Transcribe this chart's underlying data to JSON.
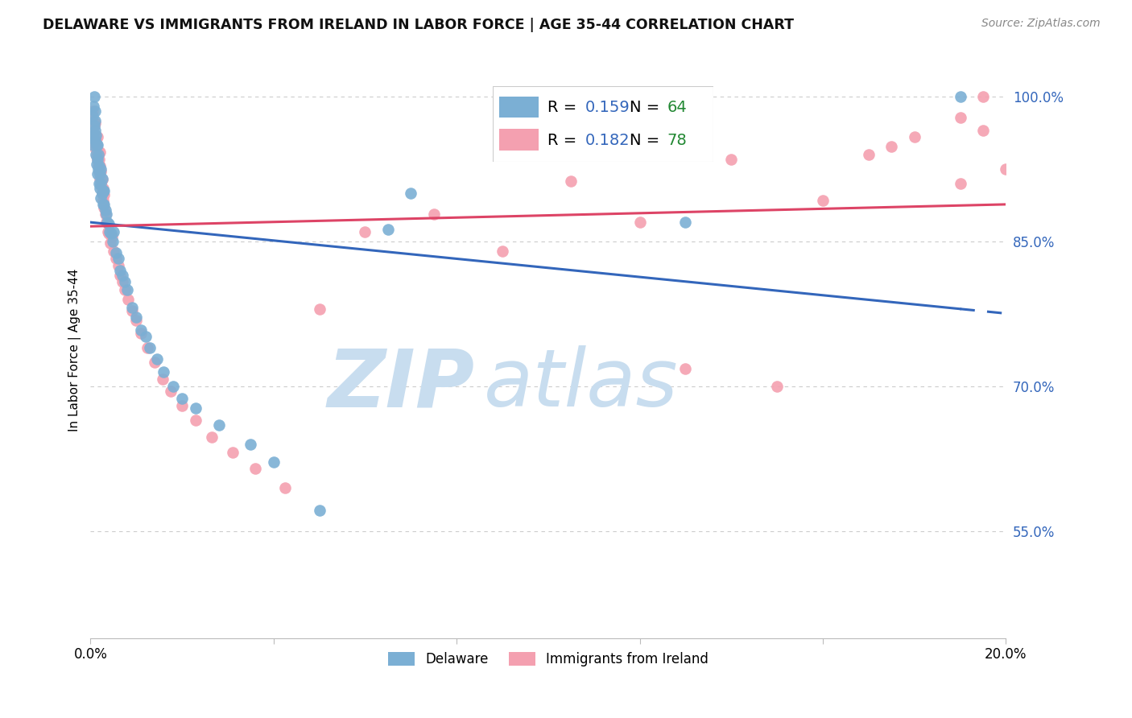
{
  "title": "DELAWARE VS IMMIGRANTS FROM IRELAND IN LABOR FORCE | AGE 35-44 CORRELATION CHART",
  "source": "Source: ZipAtlas.com",
  "ylabel": "In Labor Force | Age 35-44",
  "xlim": [
    0.0,
    0.2
  ],
  "ylim": [
    0.44,
    1.035
  ],
  "xtick_vals": [
    0.0,
    0.04,
    0.08,
    0.12,
    0.16,
    0.2
  ],
  "xtick_labels": [
    "0.0%",
    "",
    "",
    "",
    "",
    "20.0%"
  ],
  "ytick_vals_right": [
    1.0,
    0.85,
    0.7,
    0.55
  ],
  "ytick_labels_right": [
    "100.0%",
    "85.0%",
    "70.0%",
    "55.0%"
  ],
  "delaware_color": "#7BAFD4",
  "ireland_color": "#F4A0B0",
  "delaware_R": 0.159,
  "delaware_N": 64,
  "ireland_R": 0.182,
  "ireland_N": 78,
  "delaware_line_color": "#3366BB",
  "ireland_line_color": "#DD4466",
  "legend_R_color": "#3366BB",
  "legend_N_color": "#228833",
  "watermark_zip": "ZIP",
  "watermark_atlas": "atlas",
  "watermark_color_zip": "#C8DDEF",
  "watermark_color_atlas": "#C8DDEF",
  "delaware_x": [
    0.0005,
    0.0005,
    0.0007,
    0.0007,
    0.0008,
    0.0008,
    0.001,
    0.001,
    0.001,
    0.001,
    0.0012,
    0.0012,
    0.0013,
    0.0013,
    0.0015,
    0.0015,
    0.0015,
    0.0017,
    0.0017,
    0.0018,
    0.0018,
    0.002,
    0.002,
    0.0022,
    0.0022,
    0.0022,
    0.0025,
    0.0025,
    0.0027,
    0.0028,
    0.003,
    0.003,
    0.0033,
    0.0035,
    0.0037,
    0.004,
    0.0042,
    0.0045,
    0.0048,
    0.005,
    0.0055,
    0.006,
    0.0065,
    0.007,
    0.0075,
    0.008,
    0.009,
    0.01,
    0.011,
    0.012,
    0.013,
    0.0145,
    0.016,
    0.018,
    0.02,
    0.023,
    0.028,
    0.035,
    0.04,
    0.05,
    0.065,
    0.07,
    0.13,
    0.19
  ],
  "delaware_y": [
    0.95,
    0.98,
    0.96,
    0.99,
    0.97,
    1.0,
    0.955,
    0.965,
    0.975,
    0.985,
    0.94,
    0.96,
    0.93,
    0.95,
    0.92,
    0.935,
    0.95,
    0.925,
    0.94,
    0.91,
    0.928,
    0.905,
    0.92,
    0.895,
    0.91,
    0.925,
    0.9,
    0.915,
    0.888,
    0.902,
    0.888,
    0.902,
    0.882,
    0.878,
    0.87,
    0.868,
    0.86,
    0.858,
    0.85,
    0.86,
    0.838,
    0.832,
    0.82,
    0.815,
    0.808,
    0.8,
    0.782,
    0.772,
    0.758,
    0.752,
    0.74,
    0.728,
    0.715,
    0.7,
    0.688,
    0.678,
    0.66,
    0.64,
    0.622,
    0.572,
    0.862,
    0.9,
    0.87,
    1.0
  ],
  "ireland_x": [
    0.0003,
    0.0003,
    0.0005,
    0.0005,
    0.0005,
    0.0007,
    0.0007,
    0.0008,
    0.0008,
    0.001,
    0.001,
    0.001,
    0.0012,
    0.0012,
    0.0013,
    0.0013,
    0.0015,
    0.0015,
    0.0015,
    0.0017,
    0.0017,
    0.0018,
    0.0018,
    0.002,
    0.002,
    0.002,
    0.0022,
    0.0022,
    0.0025,
    0.0025,
    0.0027,
    0.0028,
    0.003,
    0.003,
    0.0032,
    0.0035,
    0.0038,
    0.004,
    0.0043,
    0.0046,
    0.005,
    0.0055,
    0.006,
    0.0065,
    0.007,
    0.0075,
    0.0082,
    0.009,
    0.01,
    0.011,
    0.0125,
    0.014,
    0.0158,
    0.0175,
    0.02,
    0.023,
    0.0265,
    0.031,
    0.036,
    0.0425,
    0.05,
    0.06,
    0.075,
    0.09,
    0.105,
    0.12,
    0.14,
    0.16,
    0.175,
    0.19,
    0.195,
    0.2,
    0.15,
    0.13,
    0.17,
    0.18,
    0.19,
    0.195
  ],
  "ireland_y": [
    0.96,
    0.975,
    0.965,
    0.975,
    0.985,
    0.955,
    0.968,
    0.958,
    0.97,
    0.95,
    0.96,
    0.972,
    0.945,
    0.955,
    0.938,
    0.95,
    0.935,
    0.945,
    0.958,
    0.928,
    0.94,
    0.922,
    0.935,
    0.915,
    0.928,
    0.942,
    0.908,
    0.922,
    0.9,
    0.914,
    0.892,
    0.905,
    0.885,
    0.898,
    0.878,
    0.87,
    0.86,
    0.858,
    0.848,
    0.855,
    0.84,
    0.832,
    0.825,
    0.815,
    0.808,
    0.8,
    0.79,
    0.778,
    0.768,
    0.755,
    0.74,
    0.725,
    0.708,
    0.695,
    0.68,
    0.665,
    0.648,
    0.632,
    0.615,
    0.595,
    0.78,
    0.86,
    0.878,
    0.84,
    0.912,
    0.87,
    0.935,
    0.892,
    0.948,
    0.91,
    0.965,
    0.925,
    0.7,
    0.718,
    0.94,
    0.958,
    0.978,
    1.0
  ]
}
